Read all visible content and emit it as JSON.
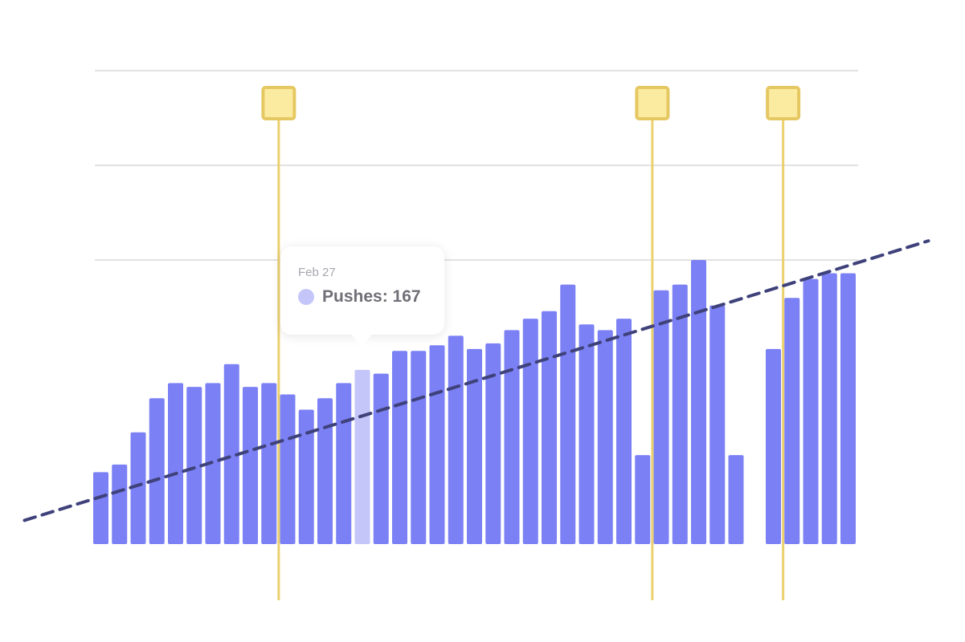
{
  "chart_data": {
    "type": "bar",
    "title": "",
    "xlabel": "",
    "ylabel": "",
    "ylim": [
      0,
      300
    ],
    "grid": true,
    "gridlines": [
      150,
      200,
      250
    ],
    "colors": {
      "bar": "#7b80f4",
      "bar_highlight": "#c4c6fa",
      "trend": "#3f427a",
      "marker_line": "#ebd06e",
      "marker_fill": "#faeba0",
      "marker_border": "#e5c862",
      "gridline": "#e2e2e2"
    },
    "values": [
      38,
      42,
      59,
      77,
      85,
      83,
      85,
      95,
      83,
      85,
      79,
      71,
      77,
      85,
      92,
      90,
      102,
      102,
      105,
      110,
      103,
      106,
      113,
      119,
      123,
      137,
      116,
      113,
      119,
      47,
      134,
      137,
      150,
      126,
      47,
      null,
      103,
      130,
      140,
      143,
      143
    ],
    "highlight_index": 14,
    "trendline": {
      "type": "linear",
      "style": "dashed",
      "start": [
        0,
        25
      ],
      "end": [
        40,
        147
      ]
    },
    "event_markers": [
      {
        "bar_index": 9.5,
        "icon": "event-flag-icon"
      },
      {
        "bar_index": 29.5,
        "icon": "event-flag-icon"
      },
      {
        "bar_index": 36.5,
        "icon": "event-flag-icon"
      }
    ],
    "tooltip": {
      "date": "Feb 27",
      "series": "Pushes",
      "value": 167,
      "text": "Pushes: 167"
    }
  }
}
